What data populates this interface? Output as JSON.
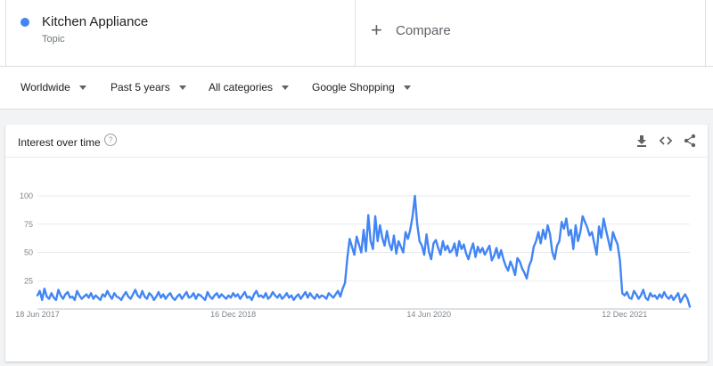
{
  "search_term": {
    "name": "Kitchen Appliance",
    "type": "Topic",
    "color": "#4285f4"
  },
  "compare": {
    "label": "Compare",
    "icon": "plus-icon"
  },
  "filters": [
    {
      "label": "Worldwide"
    },
    {
      "label": "Past 5 years"
    },
    {
      "label": "All categories"
    },
    {
      "label": "Google Shopping"
    }
  ],
  "card": {
    "title": "Interest over time",
    "help_icon": "help-circle-icon",
    "tools": [
      "download-icon",
      "embed-code-icon",
      "share-icon"
    ]
  },
  "chart_data": {
    "type": "line",
    "x_start": "2017-06-18",
    "x_end": "2022-06-12",
    "ylim": [
      0,
      100
    ],
    "yticks": [
      25,
      50,
      75,
      100
    ],
    "xtick_labels": [
      "18 Jun 2017",
      "16 Dec 2018",
      "14 Jun 2020",
      "12 Dec 2021"
    ],
    "grid": true,
    "series": [
      {
        "color": "#4285f4",
        "values": [
          12,
          16,
          8,
          18,
          11,
          9,
          14,
          10,
          8,
          17,
          12,
          9,
          13,
          15,
          10,
          11,
          8,
          16,
          12,
          9,
          11,
          13,
          10,
          14,
          9,
          12,
          10,
          8,
          13,
          11,
          16,
          12,
          9,
          14,
          11,
          10,
          8,
          12,
          15,
          11,
          9,
          13,
          17,
          12,
          10,
          16,
          11,
          9,
          14,
          12,
          8,
          11,
          15,
          10,
          13,
          9,
          12,
          14,
          10,
          8,
          11,
          13,
          9,
          12,
          15,
          10,
          11,
          14,
          9,
          13,
          12,
          10,
          8,
          15,
          11,
          9,
          12,
          14,
          10,
          13,
          11,
          9,
          12,
          10,
          14,
          11,
          13,
          9,
          12,
          15,
          10,
          11,
          8,
          13,
          16,
          11,
          12,
          10,
          14,
          9,
          11,
          15,
          12,
          10,
          13,
          9,
          11,
          14,
          10,
          12,
          8,
          11,
          13,
          9,
          12,
          15,
          10,
          14,
          11,
          9,
          13,
          10,
          12,
          11,
          9,
          14,
          12,
          10,
          13,
          16,
          11,
          18,
          23,
          45,
          62,
          55,
          48,
          64,
          57,
          50,
          70,
          51,
          83,
          60,
          53,
          82,
          60,
          74,
          63,
          56,
          69,
          58,
          52,
          65,
          49,
          60,
          55,
          50,
          68,
          62,
          70,
          82,
          100,
          75,
          60,
          56,
          48,
          66,
          51,
          44,
          58,
          61,
          54,
          48,
          60,
          52,
          56,
          50,
          52,
          58,
          47,
          60,
          53,
          57,
          49,
          44,
          52,
          58,
          46,
          55,
          50,
          54,
          48,
          52,
          56,
          43,
          47,
          54,
          45,
          52,
          44,
          38,
          34,
          42,
          37,
          30,
          45,
          42,
          36,
          32,
          27,
          38,
          43,
          55,
          60,
          68,
          58,
          70,
          62,
          74,
          66,
          50,
          44,
          56,
          60,
          77,
          71,
          80,
          65,
          70,
          53,
          74,
          60,
          68,
          82,
          77,
          72,
          65,
          68,
          58,
          48,
          73,
          63,
          80,
          70,
          61,
          52,
          68,
          62,
          57,
          43,
          14,
          12,
          15,
          10,
          9,
          16,
          13,
          9,
          12,
          17,
          10,
          8,
          14,
          11,
          12,
          9,
          13,
          10,
          15,
          11,
          9,
          12,
          8,
          11,
          14,
          6,
          10,
          13,
          9,
          2
        ]
      }
    ]
  }
}
